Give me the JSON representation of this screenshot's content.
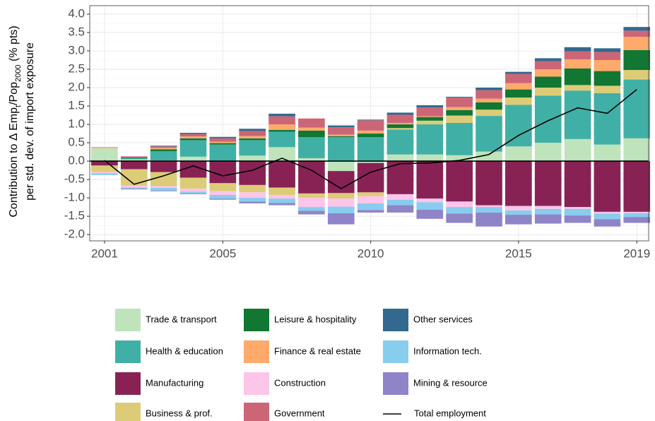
{
  "chart_data": {
    "type": "bar",
    "ylabel": [
      "Contribution to Δ Emp",
      "t",
      "/Pop",
      "2000",
      " (% pts)"
    ],
    "ylabel2": "per std. dev. of import exposure",
    "x": [
      2001,
      2002,
      2003,
      2004,
      2005,
      2006,
      2007,
      2008,
      2009,
      2010,
      2011,
      2012,
      2013,
      2014,
      2015,
      2016,
      2017,
      2018,
      2019
    ],
    "xlim": [
      2000.5,
      2019.4
    ],
    "xticks": [
      2001,
      2005,
      2010,
      2015,
      2019
    ],
    "ylim": [
      -2.17,
      4.23
    ],
    "yticks": [
      {
        "value": -2,
        "label": "-2.0"
      },
      -1.5,
      {
        "value": -1,
        "label": "-1.0"
      },
      -0.5,
      {
        "value": 0,
        "label": "0.0"
      },
      0.5,
      {
        "value": 1,
        "label": "1.0"
      },
      1.5,
      {
        "value": 2,
        "label": "2.0"
      },
      2.5,
      {
        "value": 3,
        "label": "3.0"
      },
      3.5,
      {
        "value": 4,
        "label": "4.0"
      }
    ],
    "grid": true,
    "series": [
      {
        "name": "Trade & transport",
        "color": "#bfe3bb",
        "values": [
          0.35,
          0.05,
          0.02,
          0.12,
          0,
          0.15,
          0.38,
          0.08,
          -0.27,
          -0.05,
          0.18,
          0.18,
          0.16,
          0.26,
          0.4,
          0.5,
          0.6,
          0.45,
          0.62
        ]
      },
      {
        "name": "Health & education",
        "color": "#40b0a6",
        "values": [
          0,
          0.03,
          0.25,
          0.45,
          0.45,
          0.42,
          0.42,
          0.57,
          0.65,
          0.65,
          0.68,
          0.82,
          0.88,
          0.97,
          1.13,
          1.28,
          1.32,
          1.4,
          1.6
        ]
      },
      {
        "name": "Manufacturing",
        "color": "#882255",
        "values": [
          -0.12,
          -0.22,
          -0.3,
          -0.45,
          -0.6,
          -0.65,
          -0.72,
          -0.88,
          -0.6,
          -0.8,
          -0.9,
          -1.02,
          -1.1,
          -1.2,
          -1.22,
          -1.22,
          -1.25,
          -1.38,
          -1.38
        ]
      },
      {
        "name": "Business & prof.",
        "color": "#ddcc77",
        "values": [
          -0.18,
          -0.45,
          -0.38,
          -0.3,
          -0.22,
          -0.2,
          -0.2,
          -0.12,
          -0.15,
          -0.1,
          0.04,
          0.1,
          0.2,
          0.17,
          0.2,
          0.22,
          0.15,
          0.2,
          0.26
        ]
      },
      {
        "name": "Leisure & hospitality",
        "color": "#117733",
        "values": [
          0,
          0.02,
          0.05,
          0.05,
          0.04,
          0.05,
          0.05,
          0.18,
          0.03,
          0.1,
          0.1,
          0.1,
          0.15,
          0.2,
          0.22,
          0.3,
          0.45,
          0.4,
          0.54
        ]
      },
      {
        "name": "Finance & real estate",
        "color": "#fdaa6b",
        "values": [
          0.02,
          0,
          0.04,
          0.05,
          0.04,
          0.06,
          0.15,
          0.08,
          0.04,
          0.08,
          0.04,
          0.02,
          0.08,
          0.1,
          0.17,
          0.2,
          0.25,
          0.3,
          0.36
        ]
      },
      {
        "name": "Construction",
        "color": "#fcc5ea",
        "values": [
          -0.03,
          -0.05,
          -0.05,
          -0.08,
          -0.1,
          -0.15,
          -0.1,
          -0.25,
          -0.22,
          -0.2,
          -0.15,
          -0.1,
          -0.15,
          -0.05,
          -0.12,
          -0.08,
          -0.05,
          -0.05,
          -0.04
        ]
      },
      {
        "name": "Government",
        "color": "#cc6677",
        "values": [
          0.01,
          0.03,
          0.04,
          0.07,
          0.09,
          0.14,
          0.22,
          0.25,
          0.2,
          0.28,
          0.22,
          0.24,
          0.26,
          0.23,
          0.25,
          0.22,
          0.22,
          0.22,
          0.17
        ]
      },
      {
        "name": "Other services",
        "color": "#33698e",
        "values": [
          0,
          0,
          0.02,
          0.03,
          0.04,
          0.06,
          0.07,
          0,
          0.05,
          0.02,
          0.06,
          0.06,
          0.02,
          0.07,
          0.06,
          0.08,
          0.11,
          0.1,
          0.1
        ]
      },
      {
        "name": "Information tech.",
        "color": "#88ccee",
        "values": [
          -0.05,
          -0.03,
          -0.07,
          -0.05,
          -0.1,
          -0.1,
          -0.12,
          -0.1,
          -0.18,
          -0.18,
          -0.15,
          -0.2,
          -0.18,
          -0.15,
          -0.12,
          -0.15,
          -0.18,
          -0.15,
          -0.1
        ]
      },
      {
        "name": "Mining & resource",
        "color": "#8f84c8",
        "values": [
          0,
          -0.02,
          -0.02,
          -0.02,
          -0.03,
          -0.05,
          -0.06,
          -0.1,
          -0.3,
          -0.07,
          -0.2,
          -0.25,
          -0.25,
          -0.38,
          -0.26,
          -0.25,
          -0.2,
          -0.2,
          -0.16
        ]
      }
    ],
    "line": {
      "name": "Total employment",
      "color": "#000000",
      "values": [
        0.02,
        -0.63,
        -0.4,
        -0.13,
        -0.4,
        -0.25,
        0.08,
        -0.25,
        -0.75,
        -0.3,
        -0.07,
        -0.05,
        0.02,
        0.18,
        0.7,
        1.1,
        1.45,
        1.3,
        1.95
      ]
    }
  }
}
